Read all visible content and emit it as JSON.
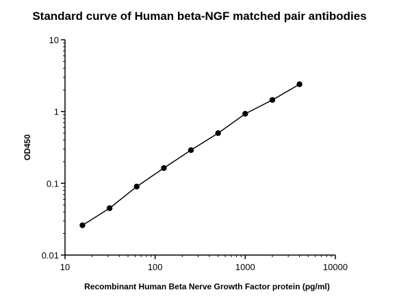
{
  "chart_data": {
    "type": "scatter",
    "title": "Standard curve of Human beta-NGF matched pair antibodies",
    "xlabel": "Recombinant Human Beta Nerve Growth Factor protein (pg/ml)",
    "ylabel": "OD450",
    "x_scale": "log",
    "y_scale": "log",
    "xlim": [
      10,
      10000
    ],
    "ylim": [
      0.01,
      10
    ],
    "x_ticks": [
      "10",
      "100",
      "1000",
      "10000"
    ],
    "y_ticks": [
      "0.01",
      "0.1",
      "1",
      "10"
    ],
    "grid": false,
    "line": true,
    "series": [
      {
        "x": [
          15.6,
          31.25,
          62.5,
          125,
          250,
          500,
          1000,
          2000,
          4000
        ],
        "y": [
          0.026,
          0.045,
          0.09,
          0.163,
          0.29,
          0.5,
          0.93,
          1.45,
          2.4
        ]
      }
    ]
  }
}
